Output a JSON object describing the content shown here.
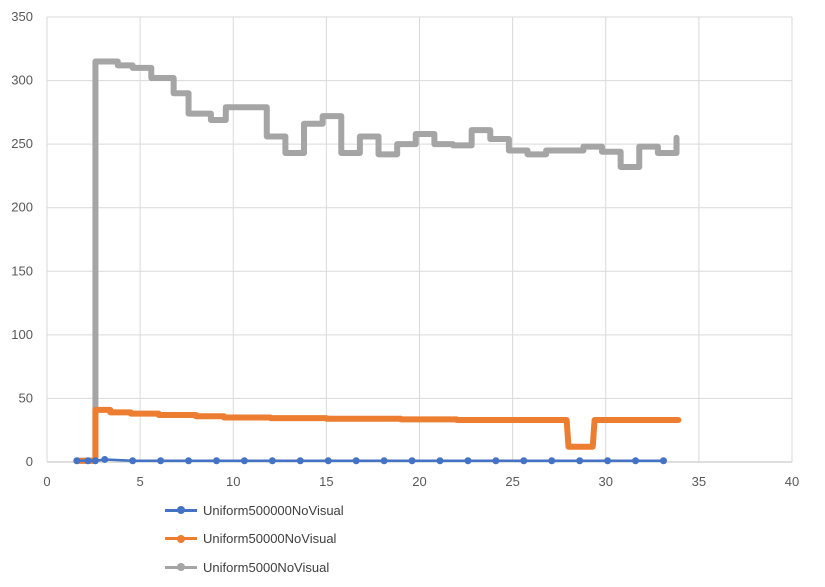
{
  "chart_data": {
    "type": "line",
    "title": "",
    "xlabel": "",
    "ylabel": "",
    "xlim": [
      0,
      40
    ],
    "ylim": [
      0,
      350
    ],
    "x_ticks": [
      0,
      5,
      10,
      15,
      20,
      25,
      30,
      35,
      40
    ],
    "y_ticks": [
      0,
      50,
      100,
      150,
      200,
      250,
      300,
      350
    ],
    "x_tick_labels": [
      "0",
      "5",
      "10",
      "15",
      "20",
      "25",
      "30",
      "35",
      "40"
    ],
    "y_tick_labels": [
      "0",
      "50",
      "100",
      "150",
      "200",
      "250",
      "300",
      "350"
    ],
    "grid": true,
    "legend_position": "bottom",
    "series": [
      {
        "name": "Uniform500000NoVisual",
        "color": "#4472C4",
        "line_width": 2.5,
        "markers": true,
        "points": [
          [
            1.6,
            1
          ],
          [
            2.2,
            1
          ],
          [
            2.6,
            1
          ],
          [
            3.1,
            2
          ],
          [
            4.6,
            1
          ],
          [
            6.1,
            1
          ],
          [
            7.6,
            1
          ],
          [
            9.1,
            1
          ],
          [
            10.6,
            1
          ],
          [
            12.1,
            1
          ],
          [
            13.6,
            1
          ],
          [
            15.1,
            1
          ],
          [
            16.6,
            1
          ],
          [
            18.1,
            1
          ],
          [
            19.6,
            1
          ],
          [
            21.1,
            1
          ],
          [
            22.6,
            1
          ],
          [
            24.1,
            1
          ],
          [
            25.6,
            1
          ],
          [
            27.1,
            1
          ],
          [
            28.6,
            1
          ],
          [
            30.1,
            1
          ],
          [
            31.6,
            1
          ],
          [
            33.1,
            1
          ]
        ]
      },
      {
        "name": "Uniform50000NoVisual",
        "color": "#ED7D31",
        "line_width": 6,
        "markers": false,
        "points": [
          [
            1.6,
            1
          ],
          [
            2.6,
            1
          ],
          [
            2.6,
            41
          ],
          [
            3.4,
            41
          ],
          [
            3.4,
            39
          ],
          [
            4.5,
            39
          ],
          [
            4.5,
            38
          ],
          [
            6,
            38
          ],
          [
            6,
            37
          ],
          [
            8,
            37
          ],
          [
            8,
            36
          ],
          [
            9.5,
            36
          ],
          [
            9.5,
            35
          ],
          [
            12,
            35
          ],
          [
            12,
            34.5
          ],
          [
            15,
            34.5
          ],
          [
            15,
            34
          ],
          [
            19,
            34
          ],
          [
            19,
            33.5
          ],
          [
            22,
            33.5
          ],
          [
            22,
            33
          ],
          [
            27.9,
            33
          ],
          [
            28,
            12
          ],
          [
            29.3,
            12
          ],
          [
            29.4,
            33
          ],
          [
            33.9,
            33
          ]
        ]
      },
      {
        "name": "Uniform5000NoVisual",
        "color": "#A5A5A5",
        "line_width": 6,
        "markers": false,
        "points": [
          [
            1.6,
            1
          ],
          [
            2.6,
            1
          ],
          [
            2.6,
            315
          ],
          [
            3.8,
            315
          ],
          [
            3.8,
            312
          ],
          [
            4.6,
            312
          ],
          [
            4.6,
            310
          ],
          [
            5.6,
            310
          ],
          [
            5.6,
            302
          ],
          [
            6.8,
            302
          ],
          [
            6.8,
            290
          ],
          [
            7.6,
            290
          ],
          [
            7.6,
            274
          ],
          [
            8.8,
            274
          ],
          [
            8.8,
            269
          ],
          [
            9.6,
            269
          ],
          [
            9.6,
            279
          ],
          [
            11.8,
            279
          ],
          [
            11.8,
            256
          ],
          [
            12.8,
            256
          ],
          [
            12.8,
            243
          ],
          [
            13.8,
            243
          ],
          [
            13.8,
            266
          ],
          [
            14.8,
            266
          ],
          [
            14.8,
            272
          ],
          [
            15.8,
            272
          ],
          [
            15.8,
            243
          ],
          [
            16.8,
            243
          ],
          [
            16.8,
            256
          ],
          [
            17.8,
            256
          ],
          [
            17.8,
            242
          ],
          [
            18.8,
            242
          ],
          [
            18.8,
            250
          ],
          [
            19.8,
            250
          ],
          [
            19.8,
            258
          ],
          [
            20.8,
            258
          ],
          [
            20.8,
            250
          ],
          [
            21.8,
            250
          ],
          [
            21.8,
            249
          ],
          [
            22.8,
            249
          ],
          [
            22.8,
            261
          ],
          [
            23.8,
            261
          ],
          [
            23.8,
            254
          ],
          [
            24.8,
            254
          ],
          [
            24.8,
            245
          ],
          [
            25.8,
            245
          ],
          [
            25.8,
            242
          ],
          [
            26.8,
            242
          ],
          [
            26.8,
            245
          ],
          [
            27.8,
            245
          ],
          [
            27.8,
            245
          ],
          [
            28.8,
            245
          ],
          [
            28.8,
            248
          ],
          [
            29.8,
            248
          ],
          [
            29.8,
            244
          ],
          [
            30.8,
            244
          ],
          [
            30.8,
            232
          ],
          [
            31.8,
            232
          ],
          [
            31.8,
            248
          ],
          [
            32.8,
            248
          ],
          [
            32.8,
            243
          ],
          [
            33.8,
            243
          ],
          [
            33.8,
            255
          ]
        ]
      }
    ]
  }
}
